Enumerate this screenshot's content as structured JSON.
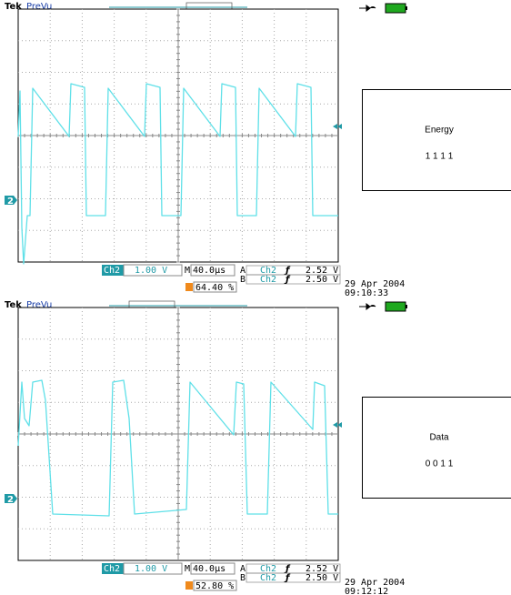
{
  "panels": [
    {
      "brand": "Tek",
      "mode": "PreVu",
      "channel_marker": "2",
      "channel": "Ch2",
      "volts_per_div": "1.00 V",
      "timebase_prefix": "M",
      "timebase": "40.0µs",
      "trigger_a": {
        "label": "A",
        "source": "Ch2",
        "slope": "ƒ",
        "level": "2.52 V"
      },
      "trigger_b": {
        "label": "B",
        "source": "Ch2",
        "slope": "ƒ",
        "level": "2.50 V"
      },
      "duty": "64.40 %",
      "date": "29 Apr 2004",
      "time": "09:10:33",
      "box_title": "Energy",
      "box_bits": "1 1 1 1"
    },
    {
      "brand": "Tek",
      "mode": "PreVu",
      "channel_marker": "2",
      "channel": "Ch2",
      "volts_per_div": "1.00 V",
      "timebase_prefix": "M",
      "timebase": "40.0µs",
      "trigger_a": {
        "label": "A",
        "source": "Ch2",
        "slope": "ƒ",
        "level": "2.52 V"
      },
      "trigger_b": {
        "label": "B",
        "source": "Ch2",
        "slope": "ƒ",
        "level": "2.50 V"
      },
      "duty": "52.80 %",
      "date": "29 Apr 2004",
      "time": "09:12:12",
      "box_title": "Data",
      "box_bits": "0 0 1 1"
    }
  ]
}
